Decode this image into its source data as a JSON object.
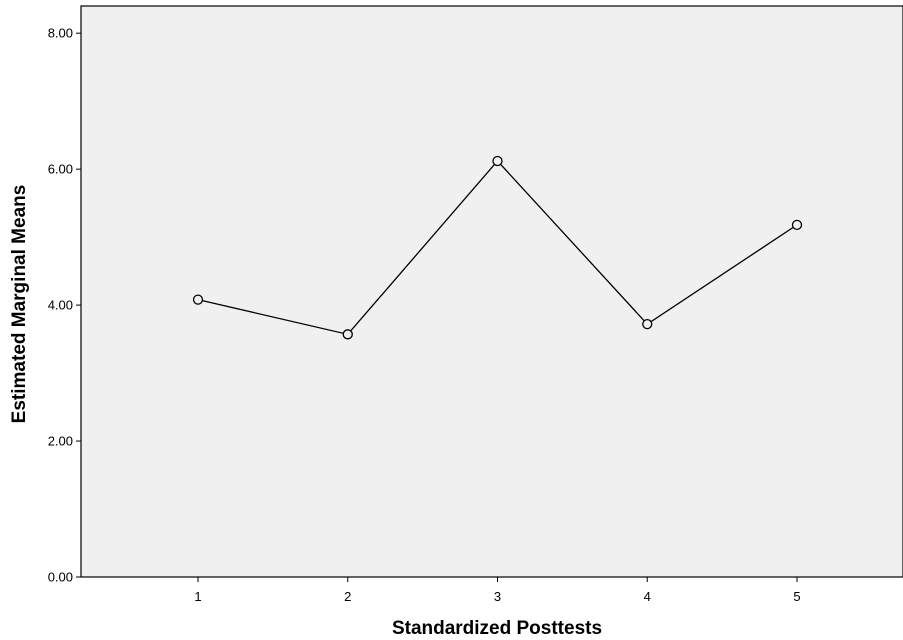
{
  "chart_data": {
    "type": "line",
    "xlabel": "Standardized Posttests",
    "ylabel": "Estimated Marginal Means",
    "categories": [
      "1",
      "2",
      "3",
      "4",
      "5"
    ],
    "series": [
      {
        "values": [
          4.08,
          3.57,
          6.12,
          3.72,
          5.18
        ]
      }
    ],
    "ylim": [
      0,
      8.4
    ],
    "yticks": [
      0,
      2,
      4,
      6,
      8
    ],
    "ytick_labels": [
      "0.00",
      "2.00",
      "4.00",
      "6.00",
      "8.00"
    ],
    "grid": false,
    "legend": "none",
    "marker": "open-circle"
  },
  "colors": {
    "plot_background": "#f0f0f0",
    "line": "#000000",
    "marker_fill": "#f0f0f0",
    "axis": "#000000"
  }
}
